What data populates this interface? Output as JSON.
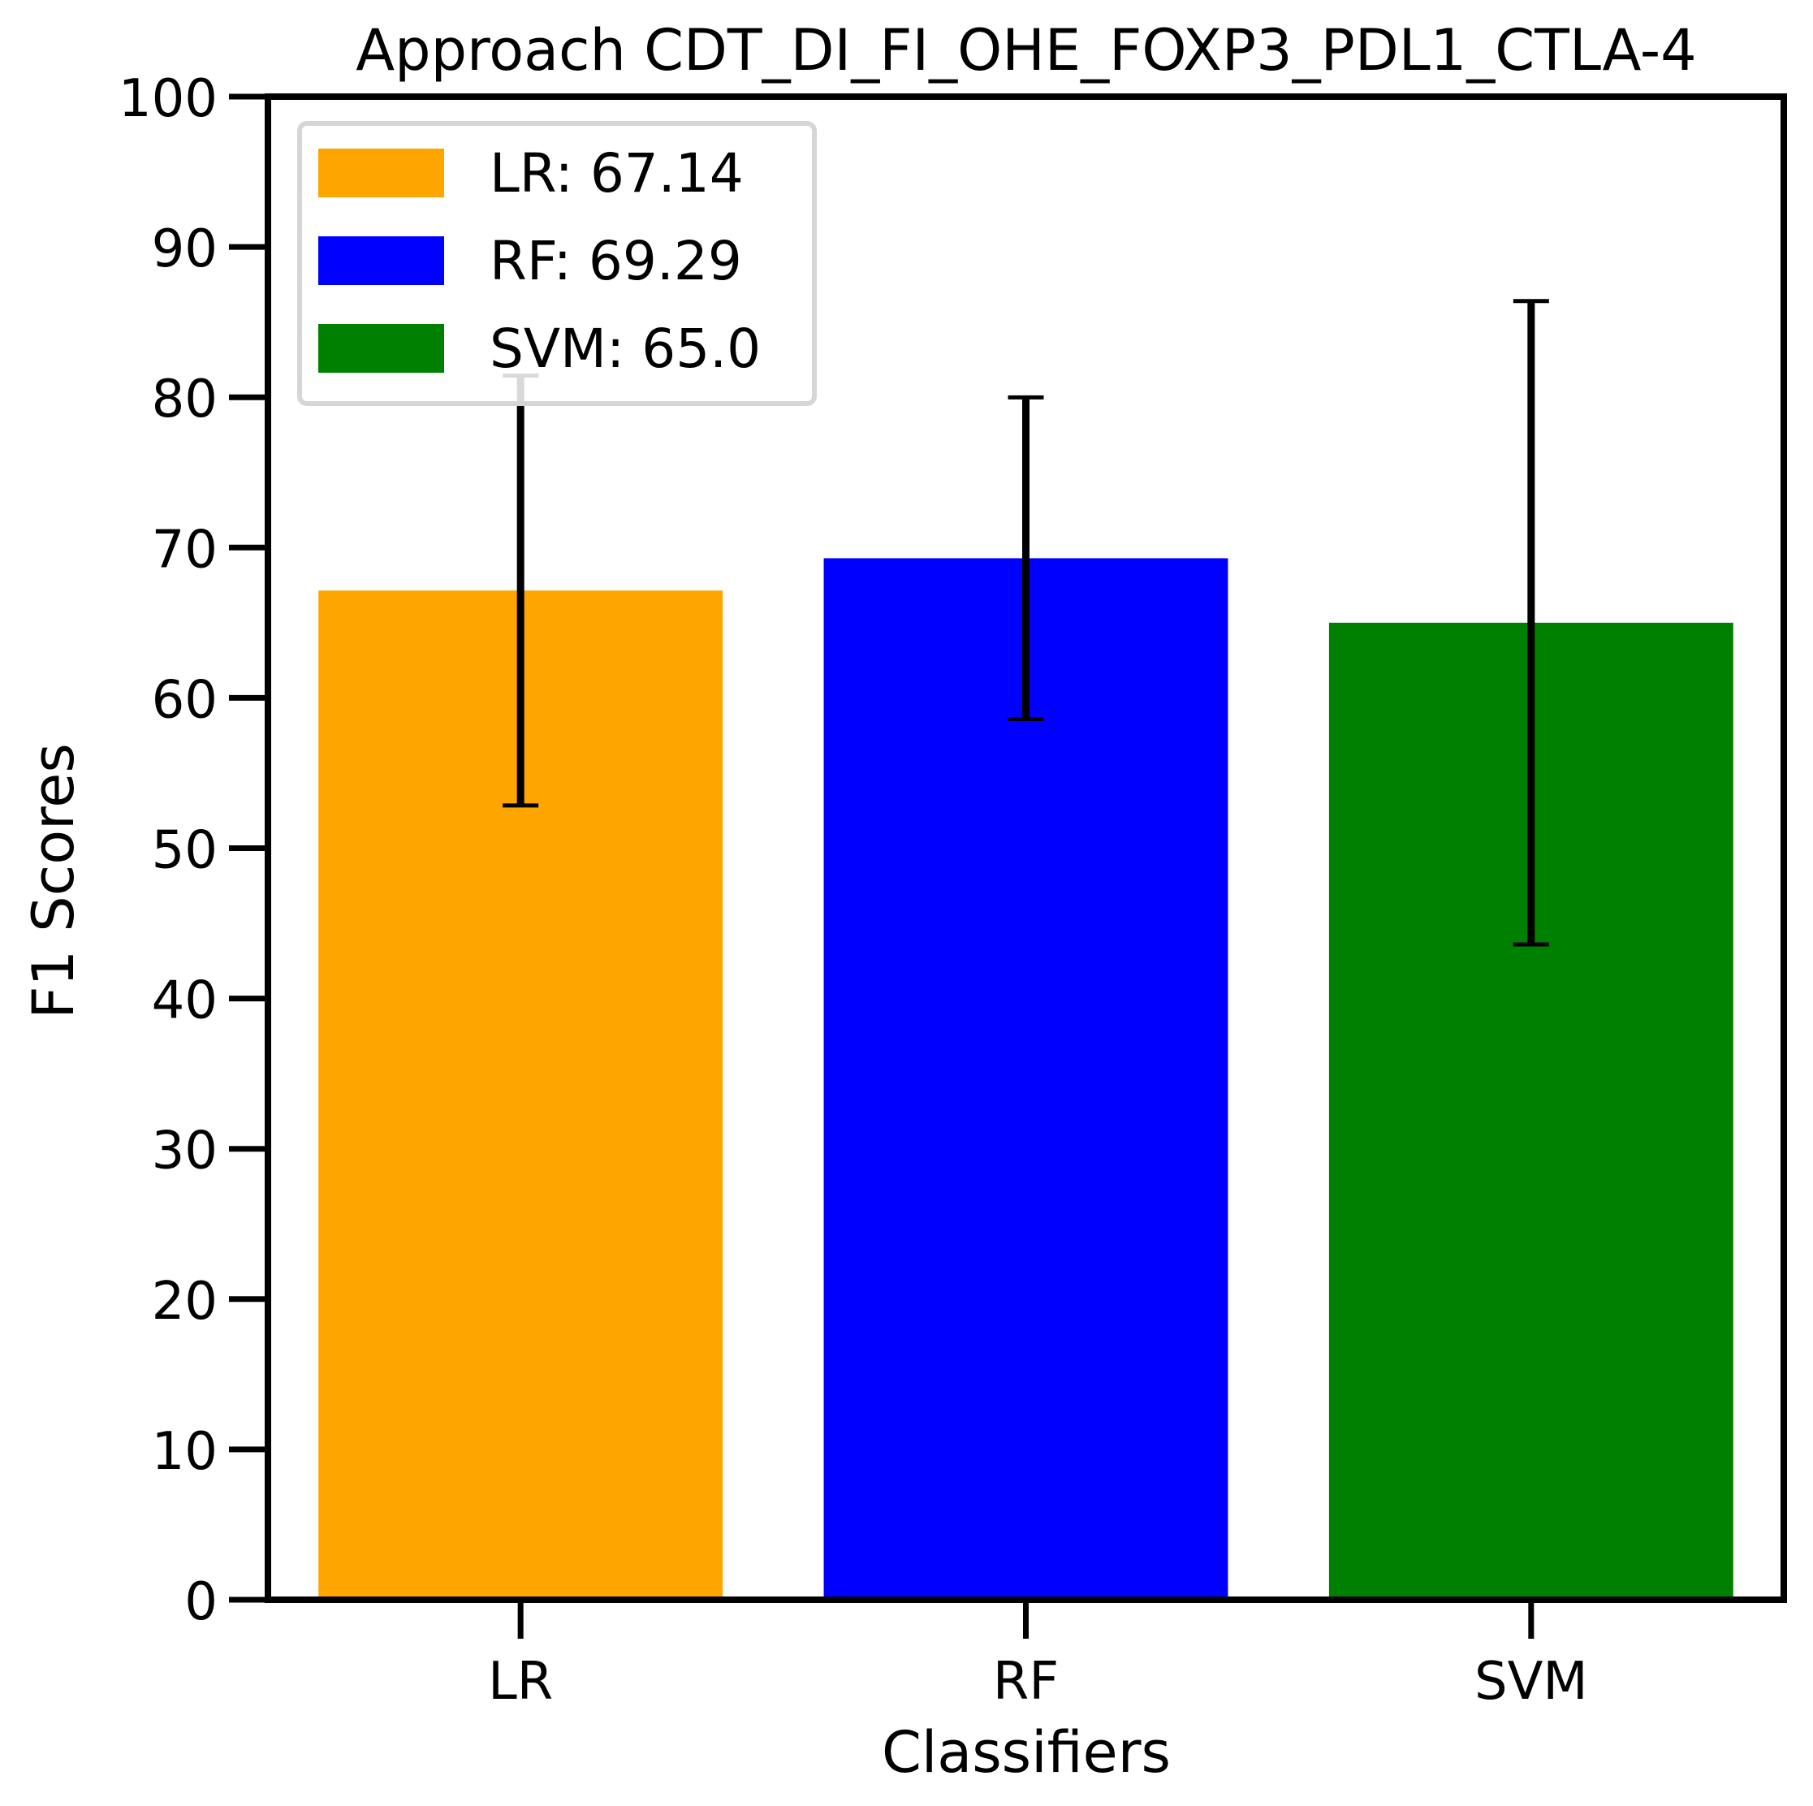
{
  "chart_data": {
    "type": "bar",
    "title": "Approach CDT_DI_FI_OHE_FOXP3_PDL1_CTLA-4",
    "xlabel": "Classifiers",
    "ylabel": "F1 Scores",
    "ylim": [
      0,
      100
    ],
    "yticks": [
      0,
      10,
      20,
      30,
      40,
      50,
      60,
      70,
      80,
      90,
      100
    ],
    "categories": [
      "LR",
      "RF",
      "SVM"
    ],
    "values": [
      67.14,
      69.29,
      65.0
    ],
    "errors": [
      14.3,
      10.7,
      21.4
    ],
    "colors": [
      "#ffa500",
      "#0000ff",
      "#008000"
    ],
    "grid": false,
    "legend_position": "top-left",
    "legend": [
      {
        "label": "LR: 67.14",
        "color": "#ffa500"
      },
      {
        "label": "RF: 69.29",
        "color": "#0000ff"
      },
      {
        "label": "SVM: 65.0",
        "color": "#008000"
      }
    ]
  }
}
